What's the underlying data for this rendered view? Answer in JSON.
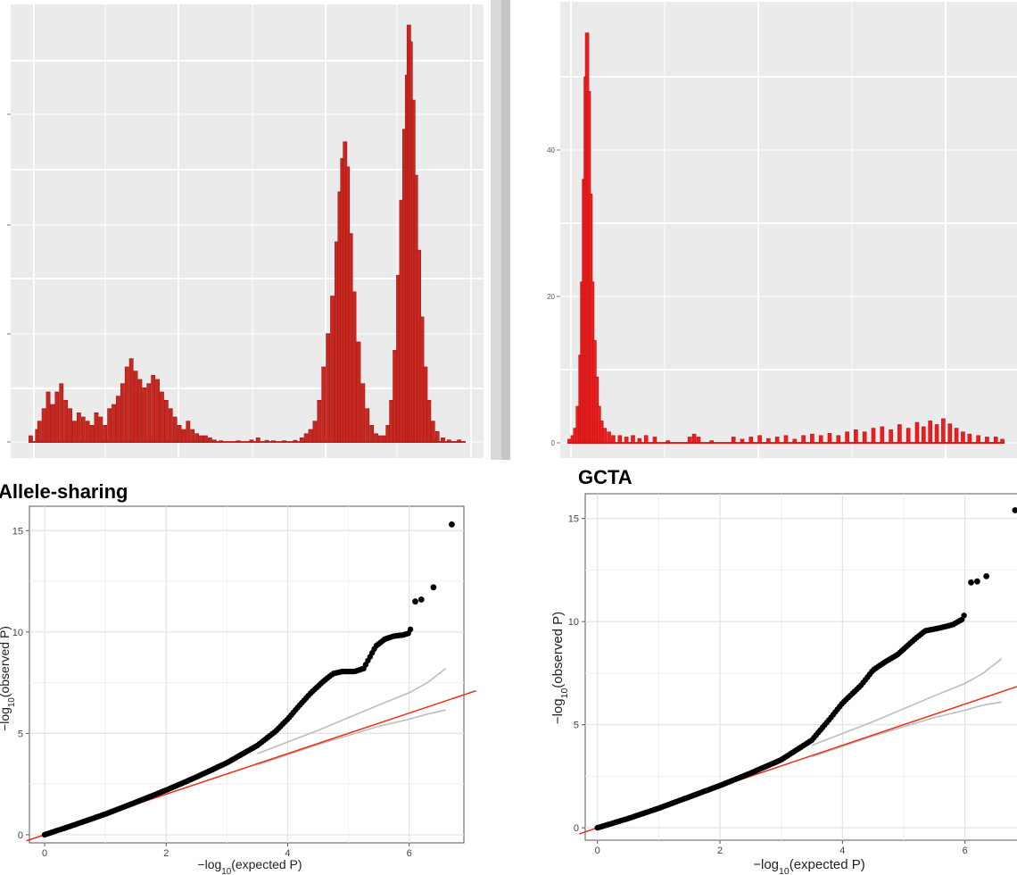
{
  "chart_data": [
    {
      "type": "bar",
      "panel": "histogram-left",
      "title": "",
      "xlabel": "",
      "ylabel": "",
      "x_range": [
        0,
        1
      ],
      "y_ticks": [
        "",
        "",
        "",
        ""
      ],
      "grid": true,
      "background": "#ebebeb",
      "bar_color": "#c8281e",
      "bars": [
        [
          0.005,
          1.5
        ],
        [
          0.02,
          3
        ],
        [
          0.025,
          5
        ],
        [
          0.035,
          8
        ],
        [
          0.045,
          12
        ],
        [
          0.055,
          9
        ],
        [
          0.065,
          12
        ],
        [
          0.075,
          14
        ],
        [
          0.085,
          10
        ],
        [
          0.095,
          8
        ],
        [
          0.105,
          5
        ],
        [
          0.115,
          7
        ],
        [
          0.125,
          6
        ],
        [
          0.135,
          5
        ],
        [
          0.145,
          4
        ],
        [
          0.155,
          7
        ],
        [
          0.165,
          6
        ],
        [
          0.175,
          4
        ],
        [
          0.185,
          8
        ],
        [
          0.195,
          9
        ],
        [
          0.205,
          11
        ],
        [
          0.215,
          14
        ],
        [
          0.225,
          18
        ],
        [
          0.235,
          20
        ],
        [
          0.245,
          17
        ],
        [
          0.255,
          15
        ],
        [
          0.265,
          13
        ],
        [
          0.275,
          14
        ],
        [
          0.285,
          16
        ],
        [
          0.295,
          15
        ],
        [
          0.305,
          12
        ],
        [
          0.315,
          10
        ],
        [
          0.325,
          8
        ],
        [
          0.335,
          6
        ],
        [
          0.345,
          4
        ],
        [
          0.355,
          3
        ],
        [
          0.365,
          5
        ],
        [
          0.375,
          3
        ],
        [
          0.385,
          2
        ],
        [
          0.395,
          1.5
        ],
        [
          0.405,
          1.5
        ],
        [
          0.415,
          1
        ],
        [
          0.425,
          0.5
        ],
        [
          0.44,
          0.3
        ],
        [
          0.48,
          0.3
        ],
        [
          0.51,
          0.5
        ],
        [
          0.525,
          1
        ],
        [
          0.545,
          0.4
        ],
        [
          0.56,
          0.3
        ],
        [
          0.585,
          0.3
        ],
        [
          0.61,
          0.4
        ],
        [
          0.625,
          1
        ],
        [
          0.635,
          2
        ],
        [
          0.645,
          3
        ],
        [
          0.655,
          5
        ],
        [
          0.665,
          10
        ],
        [
          0.675,
          18
        ],
        [
          0.685,
          26
        ],
        [
          0.695,
          35
        ],
        [
          0.705,
          48
        ],
        [
          0.712,
          60
        ],
        [
          0.718,
          68
        ],
        [
          0.724,
          72
        ],
        [
          0.73,
          66
        ],
        [
          0.737,
          50
        ],
        [
          0.745,
          36
        ],
        [
          0.755,
          24
        ],
        [
          0.765,
          14
        ],
        [
          0.775,
          8
        ],
        [
          0.785,
          4
        ],
        [
          0.795,
          2
        ],
        [
          0.805,
          1.5
        ],
        [
          0.815,
          1.5
        ],
        [
          0.822,
          4
        ],
        [
          0.83,
          10
        ],
        [
          0.838,
          22
        ],
        [
          0.846,
          40
        ],
        [
          0.853,
          58
        ],
        [
          0.86,
          75
        ],
        [
          0.866,
          88
        ],
        [
          0.87,
          100
        ],
        [
          0.874,
          96
        ],
        [
          0.88,
          82
        ],
        [
          0.886,
          64
        ],
        [
          0.893,
          46
        ],
        [
          0.9,
          30
        ],
        [
          0.908,
          18
        ],
        [
          0.916,
          10
        ],
        [
          0.925,
          5
        ],
        [
          0.935,
          2.5
        ],
        [
          0.948,
          1
        ],
        [
          0.962,
          0.5
        ],
        [
          0.985,
          0.5
        ]
      ]
    },
    {
      "type": "bar",
      "panel": "histogram-right",
      "title": "",
      "xlabel": "",
      "ylabel": "",
      "x_range": [
        0,
        1
      ],
      "y_range": [
        0,
        57
      ],
      "y_ticks": [
        "0",
        "20",
        "40"
      ],
      "grid": true,
      "background": "#ebebeb",
      "bar_color": "#ea2020",
      "bars": [
        [
          0.005,
          0.5
        ],
        [
          0.012,
          1
        ],
        [
          0.018,
          2
        ],
        [
          0.024,
          5
        ],
        [
          0.03,
          12
        ],
        [
          0.034,
          22
        ],
        [
          0.038,
          36
        ],
        [
          0.042,
          50
        ],
        [
          0.045,
          56
        ],
        [
          0.049,
          48
        ],
        [
          0.053,
          34
        ],
        [
          0.057,
          22
        ],
        [
          0.062,
          14
        ],
        [
          0.067,
          9
        ],
        [
          0.072,
          5
        ],
        [
          0.078,
          3
        ],
        [
          0.085,
          2
        ],
        [
          0.095,
          1.5
        ],
        [
          0.105,
          1
        ],
        [
          0.12,
          1
        ],
        [
          0.135,
          0.8
        ],
        [
          0.15,
          1
        ],
        [
          0.165,
          0.6
        ],
        [
          0.18,
          1
        ],
        [
          0.2,
          0.8
        ],
        [
          0.23,
          0.3
        ],
        [
          0.28,
          0.8
        ],
        [
          0.29,
          1.2
        ],
        [
          0.3,
          0.8
        ],
        [
          0.33,
          0.3
        ],
        [
          0.38,
          0.8
        ],
        [
          0.4,
          0.5
        ],
        [
          0.42,
          0.8
        ],
        [
          0.44,
          1
        ],
        [
          0.46,
          0.6
        ],
        [
          0.48,
          0.8
        ],
        [
          0.5,
          1
        ],
        [
          0.52,
          0.5
        ],
        [
          0.54,
          1
        ],
        [
          0.56,
          1.2
        ],
        [
          0.58,
          1
        ],
        [
          0.6,
          1.3
        ],
        [
          0.62,
          1
        ],
        [
          0.64,
          1.5
        ],
        [
          0.66,
          1.8
        ],
        [
          0.68,
          1.5
        ],
        [
          0.7,
          2
        ],
        [
          0.72,
          2.2
        ],
        [
          0.74,
          1.8
        ],
        [
          0.76,
          2.5
        ],
        [
          0.78,
          2
        ],
        [
          0.8,
          2.8
        ],
        [
          0.815,
          2.2
        ],
        [
          0.83,
          3
        ],
        [
          0.845,
          2.5
        ],
        [
          0.86,
          3.3
        ],
        [
          0.875,
          2.6
        ],
        [
          0.89,
          2
        ],
        [
          0.905,
          1.5
        ],
        [
          0.92,
          1.2
        ],
        [
          0.94,
          1
        ],
        [
          0.96,
          0.8
        ],
        [
          0.98,
          0.8
        ],
        [
          0.995,
          0.5
        ]
      ]
    },
    {
      "type": "scatter",
      "panel": "qq-allele-sharing",
      "title": "Allele-sharing",
      "xlabel": "-log10(expected P)",
      "ylabel": "-log10(observed P)",
      "xlim": [
        -0.25,
        6.9
      ],
      "ylim": [
        -0.4,
        16.2
      ],
      "x_ticks": [
        "0",
        "2",
        "4",
        "6"
      ],
      "y_ticks": [
        "0",
        "5",
        "10",
        "15"
      ],
      "grid": true,
      "background": "#ffffff",
      "series": [
        {
          "values": [
            [
              0.0,
              0.0
            ],
            [
              0.5,
              0.5
            ],
            [
              1.0,
              1.02
            ],
            [
              1.5,
              1.6
            ],
            [
              2.0,
              2.2
            ],
            [
              2.5,
              2.85
            ],
            [
              3.0,
              3.55
            ],
            [
              3.5,
              4.4
            ],
            [
              3.8,
              5.1
            ],
            [
              4.0,
              5.7
            ],
            [
              4.2,
              6.4
            ],
            [
              4.4,
              7.05
            ],
            [
              4.6,
              7.6
            ],
            [
              4.75,
              7.95
            ],
            [
              4.9,
              8.05
            ],
            [
              5.1,
              8.05
            ],
            [
              5.25,
              8.2
            ],
            [
              5.35,
              8.75
            ],
            [
              5.45,
              9.3
            ],
            [
              5.6,
              9.65
            ],
            [
              5.75,
              9.8
            ],
            [
              5.9,
              9.85
            ],
            [
              6.0,
              9.95
            ],
            [
              6.05,
              10.4
            ],
            [
              6.1,
              11.5
            ],
            [
              6.2,
              11.6
            ],
            [
              6.4,
              12.2
            ],
            [
              6.7,
              15.3
            ]
          ]
        }
      ],
      "reference_line": [
        [
          -0.3,
          -0.3
        ],
        [
          7.1,
          7.1
        ]
      ],
      "ci_upper": [
        [
          3.5,
          4.0
        ],
        [
          4.5,
          5.15
        ],
        [
          5.5,
          6.4
        ],
        [
          6.0,
          7.0
        ],
        [
          6.3,
          7.5
        ],
        [
          6.6,
          8.2
        ]
      ],
      "ci_lower": [
        [
          3.5,
          3.45
        ],
        [
          4.5,
          4.45
        ],
        [
          5.5,
          5.35
        ],
        [
          6.0,
          5.7
        ],
        [
          6.3,
          5.95
        ],
        [
          6.6,
          6.15
        ]
      ],
      "colors": {
        "points": "#000000",
        "reference": "#e3321e",
        "ci": "#bdbdbd"
      }
    },
    {
      "type": "scatter",
      "panel": "qq-gcta",
      "title": "GCTA",
      "xlabel": "-log10(expected P)",
      "ylabel": "-log10(observed P)",
      "xlim": [
        -0.2,
        6.85
      ],
      "ylim": [
        -0.6,
        16.2
      ],
      "x_ticks": [
        "0",
        "2",
        "4",
        "6"
      ],
      "y_ticks": [
        "0",
        "5",
        "10",
        "15"
      ],
      "grid": true,
      "background": "#ffffff",
      "series": [
        {
          "values": [
            [
              0.0,
              0.0
            ],
            [
              0.5,
              0.45
            ],
            [
              1.0,
              0.95
            ],
            [
              1.5,
              1.5
            ],
            [
              2.0,
              2.05
            ],
            [
              2.5,
              2.65
            ],
            [
              3.0,
              3.3
            ],
            [
              3.5,
              4.25
            ],
            [
              3.8,
              5.3
            ],
            [
              4.0,
              6.05
            ],
            [
              4.3,
              6.9
            ],
            [
              4.5,
              7.65
            ],
            [
              4.7,
              8.05
            ],
            [
              4.9,
              8.4
            ],
            [
              5.05,
              8.8
            ],
            [
              5.2,
              9.2
            ],
            [
              5.35,
              9.55
            ],
            [
              5.6,
              9.7
            ],
            [
              5.8,
              9.85
            ],
            [
              5.95,
              10.1
            ],
            [
              6.02,
              10.5
            ],
            [
              6.1,
              11.9
            ],
            [
              6.2,
              11.95
            ],
            [
              6.35,
              12.2
            ],
            [
              6.82,
              15.4
            ]
          ]
        }
      ],
      "reference_line": [
        [
          -0.3,
          -0.3
        ],
        [
          6.85,
          6.85
        ]
      ],
      "ci_upper": [
        [
          3.5,
          4.0
        ],
        [
          4.5,
          5.15
        ],
        [
          5.5,
          6.4
        ],
        [
          6.0,
          7.0
        ],
        [
          6.3,
          7.5
        ],
        [
          6.6,
          8.2
        ]
      ],
      "ci_lower": [
        [
          3.5,
          3.45
        ],
        [
          4.5,
          4.45
        ],
        [
          5.5,
          5.35
        ],
        [
          6.0,
          5.7
        ],
        [
          6.3,
          5.95
        ],
        [
          6.6,
          6.1
        ]
      ],
      "colors": {
        "points": "#000000",
        "reference": "#e3321e",
        "ci": "#bdbdbd"
      }
    }
  ]
}
